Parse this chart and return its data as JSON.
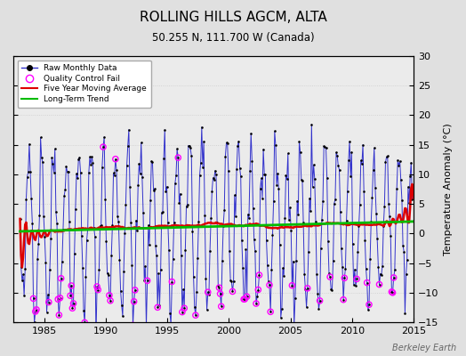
{
  "title": "ROLLING HILLS AGCM, ALTA",
  "subtitle": "50.255 N, 111.700 W (Canada)",
  "ylabel": "Temperature Anomaly (°C)",
  "watermark": "Berkeley Earth",
  "xlim": [
    1982.5,
    2015.0
  ],
  "ylim": [
    -15,
    30
  ],
  "yticks": [
    -15,
    -10,
    -5,
    0,
    5,
    10,
    15,
    20,
    25,
    30
  ],
  "xticks": [
    1985,
    1990,
    1995,
    2000,
    2005,
    2010,
    2015
  ],
  "bg_color": "#e0e0e0",
  "plot_bg_color": "#ebebeb",
  "line_color_raw": "#3333cc",
  "line_color_5yr": "#dd0000",
  "line_color_trend": "#00bb00",
  "dot_color": "#000000",
  "qc_color": "#ff00ff",
  "seed": 42
}
